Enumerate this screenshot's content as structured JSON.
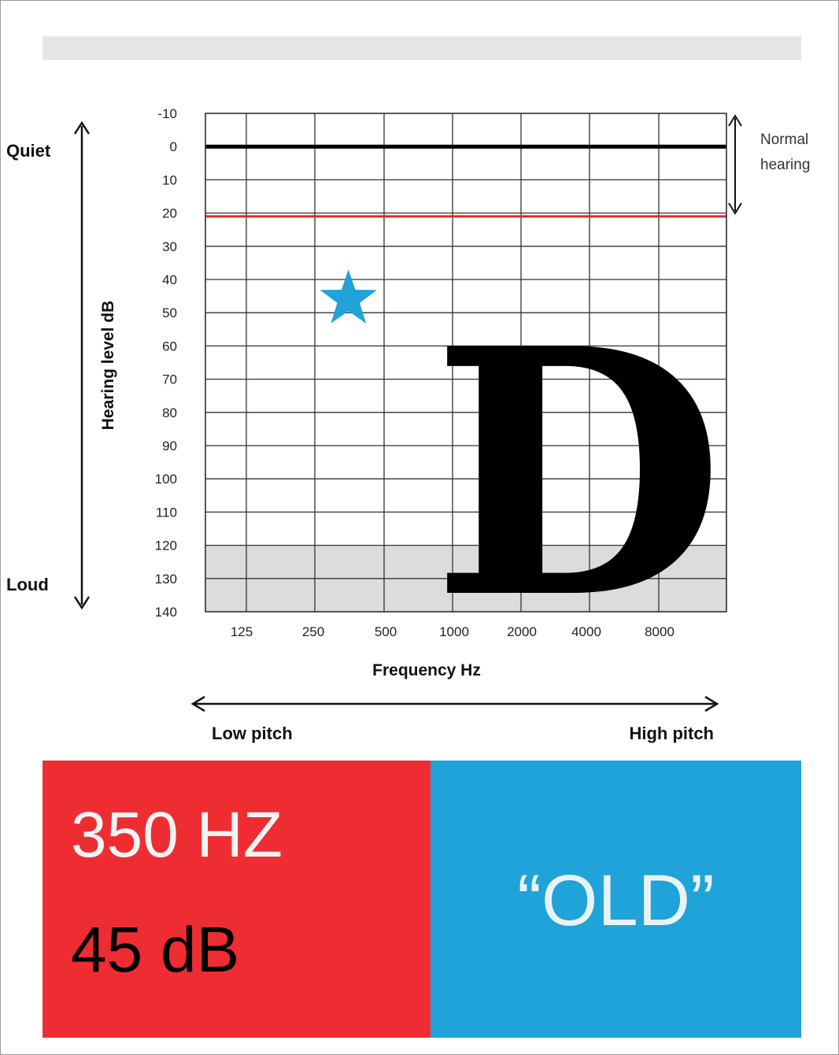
{
  "chart_data": {
    "type": "scatter",
    "title": "",
    "xlabel": "Frequency Hz",
    "ylabel": "Hearing level dB",
    "x_ticks": [
      "125",
      "250",
      "500",
      "1000",
      "2000",
      "4000",
      "8000"
    ],
    "y_ticks": [
      -10,
      0,
      10,
      20,
      30,
      40,
      50,
      60,
      70,
      80,
      90,
      100,
      110,
      120,
      130,
      140
    ],
    "ylim": [
      -10,
      140
    ],
    "y_inverted": true,
    "grid": true,
    "shaded_range": [
      120,
      140
    ],
    "reference_lines": [
      {
        "y": 0,
        "color": "#000000"
      },
      {
        "y": 21,
        "color": "#e4262b"
      }
    ],
    "points": [
      {
        "x": 350,
        "y": 45,
        "marker": "star",
        "color": "#1fa3d8"
      }
    ],
    "annotations": {
      "quiet": "Quiet",
      "loud": "Loud",
      "normal_hearing_1": "Normal",
      "normal_hearing_2": "hearing",
      "low_pitch": "Low pitch",
      "high_pitch": "High pitch"
    }
  },
  "overlay_letter": "D",
  "info": {
    "frequency": "350 HZ",
    "level": "45 dB",
    "classification": "“OLD”"
  },
  "colors": {
    "red_panel": "#ee2d32",
    "blue_panel": "#1fa3d8",
    "star": "#1fa3d8",
    "shade": "#dcdcdc"
  }
}
